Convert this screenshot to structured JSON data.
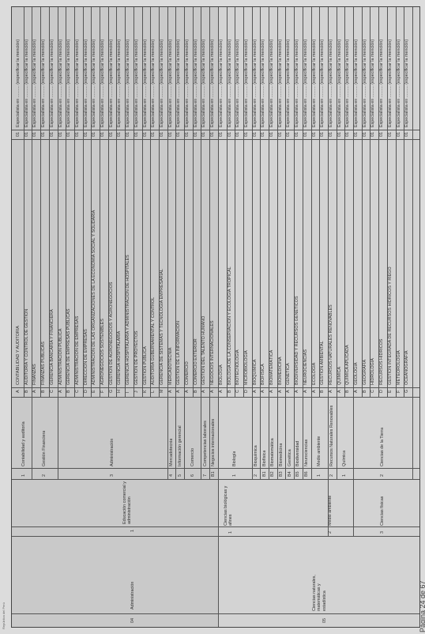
{
  "document": {
    "header": "República del Perú",
    "page_number": "Página 24 de 67"
  },
  "groups": [
    {
      "code": "04",
      "name": "Administración",
      "area_no": "1",
      "area": "Educación comercial y administración"
    },
    {
      "code": "05",
      "name": "Ciencias naturales, matemáticas y estadística",
      "areas": [
        {
          "no": "1",
          "name": "Ciencias biológicas y afines"
        },
        {
          "no": "2",
          "name": "Medio ambiente"
        },
        {
          "no": "3",
          "name": "Ciencias físicas"
        }
      ]
    }
  ],
  "subgroups": [
    {
      "no": "1",
      "name": "Contabilidad y auditoría"
    },
    {
      "no": "2",
      "name": "Gestión Financiera"
    },
    {
      "no": "3",
      "name": "Administración"
    },
    {
      "no": "4",
      "name": "Mercadotecnia"
    },
    {
      "no": "5",
      "name": "Información gerencial"
    },
    {
      "no": "6",
      "name": "Comercio"
    },
    {
      "no": "7",
      "name": "Competencias laborales"
    },
    {
      "no": "B1",
      "name": "Negocios internacionales"
    },
    {
      "no": "1",
      "name": "Biología"
    },
    {
      "no": "2",
      "name": "Bioquímica"
    },
    {
      "no": "B1",
      "name": "Biofísica"
    },
    {
      "no": "B2",
      "name": "Biomatemática"
    },
    {
      "no": "B3",
      "name": "Biomedicina"
    },
    {
      "no": "B4",
      "name": "Genética"
    },
    {
      "no": "B5",
      "name": "Biodiversidad"
    },
    {
      "no": "B6",
      "name": "Neurociencias"
    },
    {
      "no": "1",
      "name": "Medio ambiente"
    },
    {
      "no": "2",
      "name": "Recursos Naturales Renovables"
    },
    {
      "no": "1",
      "name": "Química"
    },
    {
      "no": "2",
      "name": "Ciencias de la Tierra"
    }
  ],
  "rows": [
    {
      "letter": "A",
      "career": "CONTABILIDAD Y AUDITORÍA",
      "code": "01",
      "spec": "Especialista en .......... (especificar la mención)"
    },
    {
      "letter": "B",
      "career": "AUDITORÍA Y CONTROL DE GESTIÓN",
      "code": "01",
      "spec": "Especialista en .......... (especificar la mención)"
    },
    {
      "letter": "A",
      "career": "FINANZAS",
      "code": "01",
      "spec": "Especialista en .......... (especificar la mención)"
    },
    {
      "letter": "B",
      "career": "FINANZAS PÚBLICAS",
      "code": "01",
      "spec": "Especialista en .......... (especificar la mención)"
    },
    {
      "letter": "C",
      "career": "GERENCIA BANCARIA Y FINANCIERA",
      "code": "01",
      "spec": "Especialista en .......... (especificar la mención)"
    },
    {
      "letter": "A",
      "career": "ADMINISTRACIÓN PÚBLICA",
      "code": "01",
      "spec": "Especialista en .......... (especificar la mención)"
    },
    {
      "letter": "B",
      "career": "GERENCIA DE EMPRESAS PÚBLICAS",
      "code": "01",
      "spec": "Especialista en .......... (especificar la mención)"
    },
    {
      "letter": "C",
      "career": "ADMINISTRACIÓN DE EMPRESAS",
      "code": "01",
      "spec": "Especialista en .......... (especificar la mención)"
    },
    {
      "letter": "D",
      "career": "DIRECCIÓN DE EMPRESAS",
      "code": "01",
      "spec": "Especialista en .......... (especificar la mención)"
    },
    {
      "letter": "E",
      "career": "ADMINISTRACIÓN DE LAS ORGANIZACIONES DE LA ECONOMÍA SOCIAL Y SOLIDARIA",
      "code": "01",
      "spec": "Especialista en .......... (especificar la mención)"
    },
    {
      "letter": "F",
      "career": "AGRONEGOCIOS SOSTENIBLES",
      "code": "01",
      "spec": "Especialista en .......... (especificar la mención)"
    },
    {
      "letter": "G",
      "career": "GESTIÓN DE AGRONEGOCIOS Y AGRONEGOCIOS",
      "code": "01",
      "spec": "Especialista en .......... (especificar la mención)"
    },
    {
      "letter": "H",
      "career": "GERENCIA HOSPITALARIA",
      "code": "01",
      "spec": "Especialista en .......... (especificar la mención)"
    },
    {
      "letter": "I",
      "career": "GERENCIA HOSPITALARIA Y ADMINISTRACIÓN DE HOSPITALES",
      "code": "01",
      "spec": "Especialista en .......... (especificar la mención)"
    },
    {
      "letter": "J",
      "career": "GESTIÓN DE PROYECTOS",
      "code": "01",
      "spec": "Especialista en .......... (especificar la mención)"
    },
    {
      "letter": "K",
      "career": "GESTIÓN PÚBLICA",
      "code": "01",
      "spec": "Especialista en .......... (especificar la mención)"
    },
    {
      "letter": "L",
      "career": "AUDITORÍA GUBERNAMENTAL Y CONTROL",
      "code": "01",
      "spec": "Especialista en .......... (especificar la mención)"
    },
    {
      "letter": "M",
      "career": "GERENCIA DE SISTEMAS Y TECNOLOGÍA EMPRESARIAL",
      "code": "01",
      "spec": "Especialista en .......... (especificar la mención)"
    },
    {
      "letter": "A",
      "career": "MERCADOTECNIA",
      "code": "01",
      "spec": "Especialista en .......... (especificar la mención)"
    },
    {
      "letter": "A",
      "career": "GESTIÓN DE LA INFORMACIÓN",
      "code": "01",
      "spec": "Especialista en .......... (especificar la mención)"
    },
    {
      "letter": "A",
      "career": "COMERCIO",
      "code": "01",
      "spec": "Especialista en .......... (especificar la mención)"
    },
    {
      "letter": "B",
      "career": "COMERCIO EXTERIOR",
      "code": "01",
      "spec": "Especialista en .......... (especificar la mención)"
    },
    {
      "letter": "A",
      "career": "GESTIÓN DEL TALENTO HUMANO",
      "code": "01",
      "spec": "Especialista en .......... (especificar la mención)"
    },
    {
      "letter": "A",
      "career": "NEGOCIOS INTERNACIONALES",
      "code": "01",
      "spec": "Especialista en .......... (especificar la mención)"
    },
    {
      "letter": "A",
      "career": "BIOLOGÍA",
      "code": "01",
      "spec": "Especialista en .......... (especificar la mención)"
    },
    {
      "letter": "B",
      "career": "BIOLOGÍA DE LA CONSERVACIÓN Y ECOLOGÍA TROPICAL",
      "code": "01",
      "spec": "Especialista en .......... (especificar la mención)"
    },
    {
      "letter": "C",
      "career": "BIOTECNOLOGÍA",
      "code": "01",
      "spec": "Especialista en .......... (especificar la mención)"
    },
    {
      "letter": "D",
      "career": "MICROBIOLOGÍA",
      "code": "01",
      "spec": "Especialista en .......... (especificar la mención)"
    },
    {
      "letter": "A",
      "career": "BIOQUÍMICA",
      "code": "01",
      "spec": "Especialista en .......... (especificar la mención)"
    },
    {
      "letter": "A",
      "career": "BIOFÍSICA",
      "code": "01",
      "spec": "Especialista en .......... (especificar la mención)"
    },
    {
      "letter": "A",
      "career": "BIOMATEMÁTICA",
      "code": "01",
      "spec": "Especialista en .......... (especificar la mención)"
    },
    {
      "letter": "A",
      "career": "BIOMEDICINA",
      "code": "01",
      "spec": "Especialista en .......... (especificar la mención)"
    },
    {
      "letter": "A",
      "career": "GENÉTICA",
      "code": "01",
      "spec": "Especialista en .......... (especificar la mención)"
    },
    {
      "letter": "A",
      "career": "BIODIVERSIDAD Y RECURSOS GENÉTICOS",
      "code": "01",
      "spec": "Especialista en .......... (especificar la mención)"
    },
    {
      "letter": "A",
      "career": "NEUROCIENCIAS",
      "code": "01",
      "spec": "Especialista en .......... (especificar la mención)"
    },
    {
      "letter": "A",
      "career": "ECOLOGÍA",
      "code": "01",
      "spec": "Especialista en .......... (especificar la mención)"
    },
    {
      "letter": "B",
      "career": "GESTIÓN AMBIENTAL",
      "code": "01",
      "spec": "Especialista en .......... (especificar la mención)"
    },
    {
      "letter": "A",
      "career": "RECURSOS NATURALES RENOVABLES",
      "code": "01",
      "spec": "Especialista en .......... (especificar la mención)"
    },
    {
      "letter": "A",
      "career": "QUÍMICA",
      "code": "01",
      "spec": "Especialista en .......... (especificar la mención)"
    },
    {
      "letter": "B",
      "career": "QUÍMICA APLICADA",
      "code": "01",
      "spec": "Especialista en .......... (especificar la mención)"
    },
    {
      "letter": "A",
      "career": "GEOLOGÍA",
      "code": "01",
      "spec": "Especialista en .......... (especificar la mención)"
    },
    {
      "letter": "B",
      "career": "GEOGRAFÍA",
      "code": "01",
      "spec": "Especialista en .......... (especificar la mención)"
    },
    {
      "letter": "C",
      "career": "HIDROLOGÍA",
      "code": "01",
      "spec": "Especialista en .......... (especificar la mención)"
    },
    {
      "letter": "D",
      "career": "RECURSOS HÍDRICOS",
      "code": "01",
      "spec": "Especialista en .......... (especificar la mención)"
    },
    {
      "letter": "E",
      "career": "GESTIÓN INTEGRADA DE RECURSOS HÍDRICOS Y RIEGO",
      "code": "01",
      "spec": "Especialista en .......... (especificar la mención)"
    },
    {
      "letter": "F",
      "career": "METEOROLOGÍA",
      "code": "01",
      "spec": "Especialista en .......... (especificar la mención)"
    },
    {
      "letter": "G",
      "career": "OCEANOGRAFÍA",
      "code": "01",
      "spec": "Especialista en .......... (especificar la mención)"
    }
  ]
}
